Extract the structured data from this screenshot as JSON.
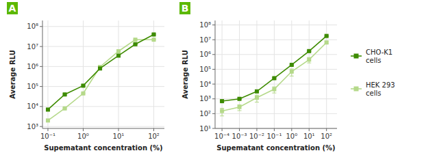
{
  "chart_data": [
    {
      "type": "line",
      "title": "A",
      "xlabel": "Supematant concentration (%)",
      "ylabel": "Average RLU",
      "x": [
        0.1,
        0.3,
        1.0,
        3.0,
        10.0,
        30.0,
        100.0
      ],
      "series": [
        {
          "name": "CHO-K1\ncells",
          "color": "#3d8b00",
          "marker": "square",
          "line_style": "solid",
          "values": [
            7000,
            40000,
            110000,
            800000,
            3500000,
            13000000,
            40000000
          ],
          "yerr": [
            600,
            3000,
            8000,
            50000,
            200000,
            700000,
            2500000
          ]
        },
        {
          "name": "HEK 293\ncells",
          "color": "#b5d98a",
          "marker": "square",
          "line_style": "solid",
          "values": [
            2000,
            8000,
            45000,
            950000,
            5800000,
            22000000,
            22000000
          ],
          "yerr": [
            150,
            500,
            2500,
            50000,
            280000,
            900000,
            900000
          ]
        }
      ],
      "xlim": [
        0.07,
        200
      ],
      "ylim": [
        800,
        200000000
      ],
      "xticks": [
        {
          "value": 0.1,
          "label": "10⁻¹"
        },
        {
          "value": 1,
          "label": "10⁰"
        },
        {
          "value": 10,
          "label": "10¹"
        },
        {
          "value": 100,
          "label": "10²"
        }
      ],
      "yticks": [
        {
          "value": 1000,
          "label": "10³"
        },
        {
          "value": 10000,
          "label": "10⁴"
        },
        {
          "value": 100000,
          "label": "10⁵"
        },
        {
          "value": 1000000,
          "label": "10⁶"
        },
        {
          "value": 10000000,
          "label": "10⁷"
        },
        {
          "value": 100000000,
          "label": "10⁸"
        }
      ],
      "log": true,
      "grid": true,
      "legend": "right"
    },
    {
      "type": "line",
      "title": "B",
      "xlabel": "Supematant concentration (%)",
      "ylabel": "Average RLU",
      "x": [
        0.0001,
        0.001,
        0.01,
        0.1,
        1.0,
        10.0,
        100.0
      ],
      "series": [
        {
          "name": "CHO-K1\ncells",
          "color": "#3d8b00",
          "marker": "square",
          "line_style": "solid",
          "values": [
            700,
            1000,
            3200,
            25000,
            200000,
            1700000,
            18000000
          ],
          "yerr": [
            50,
            80,
            250,
            2500,
            15000,
            100000,
            1200000
          ]
        },
        {
          "name": "HEK 293\ncells",
          "color": "#b5d98a",
          "marker": "square",
          "line_style": "solid",
          "values": [
            150,
            280,
            1200,
            4500,
            70000,
            450000,
            6500000
          ],
          "yerr": [
            80,
            120,
            600,
            2000,
            35000,
            180000,
            900000
          ]
        }
      ],
      "xlim": [
        4e-05,
        400
      ],
      "ylim": [
        10,
        200000000
      ],
      "xticks": [
        {
          "value": 0.0001,
          "label": "10⁻⁴"
        },
        {
          "value": 0.001,
          "label": "10⁻³"
        },
        {
          "value": 0.01,
          "label": "10⁻²"
        },
        {
          "value": 0.1,
          "label": "10⁻¹"
        },
        {
          "value": 1,
          "label": "10⁰"
        },
        {
          "value": 10,
          "label": "10¹"
        },
        {
          "value": 100,
          "label": "10²"
        }
      ],
      "yticks": [
        {
          "value": 10,
          "label": "10¹"
        },
        {
          "value": 100,
          "label": "10²"
        },
        {
          "value": 1000,
          "label": "10³"
        },
        {
          "value": 10000,
          "label": "10⁴"
        },
        {
          "value": 100000,
          "label": "10⁵"
        },
        {
          "value": 1000000,
          "label": "10⁶"
        },
        {
          "value": 10000000,
          "label": "10⁷"
        },
        {
          "value": 100000000,
          "label": "10⁸"
        }
      ],
      "log": true,
      "grid": true
    }
  ]
}
